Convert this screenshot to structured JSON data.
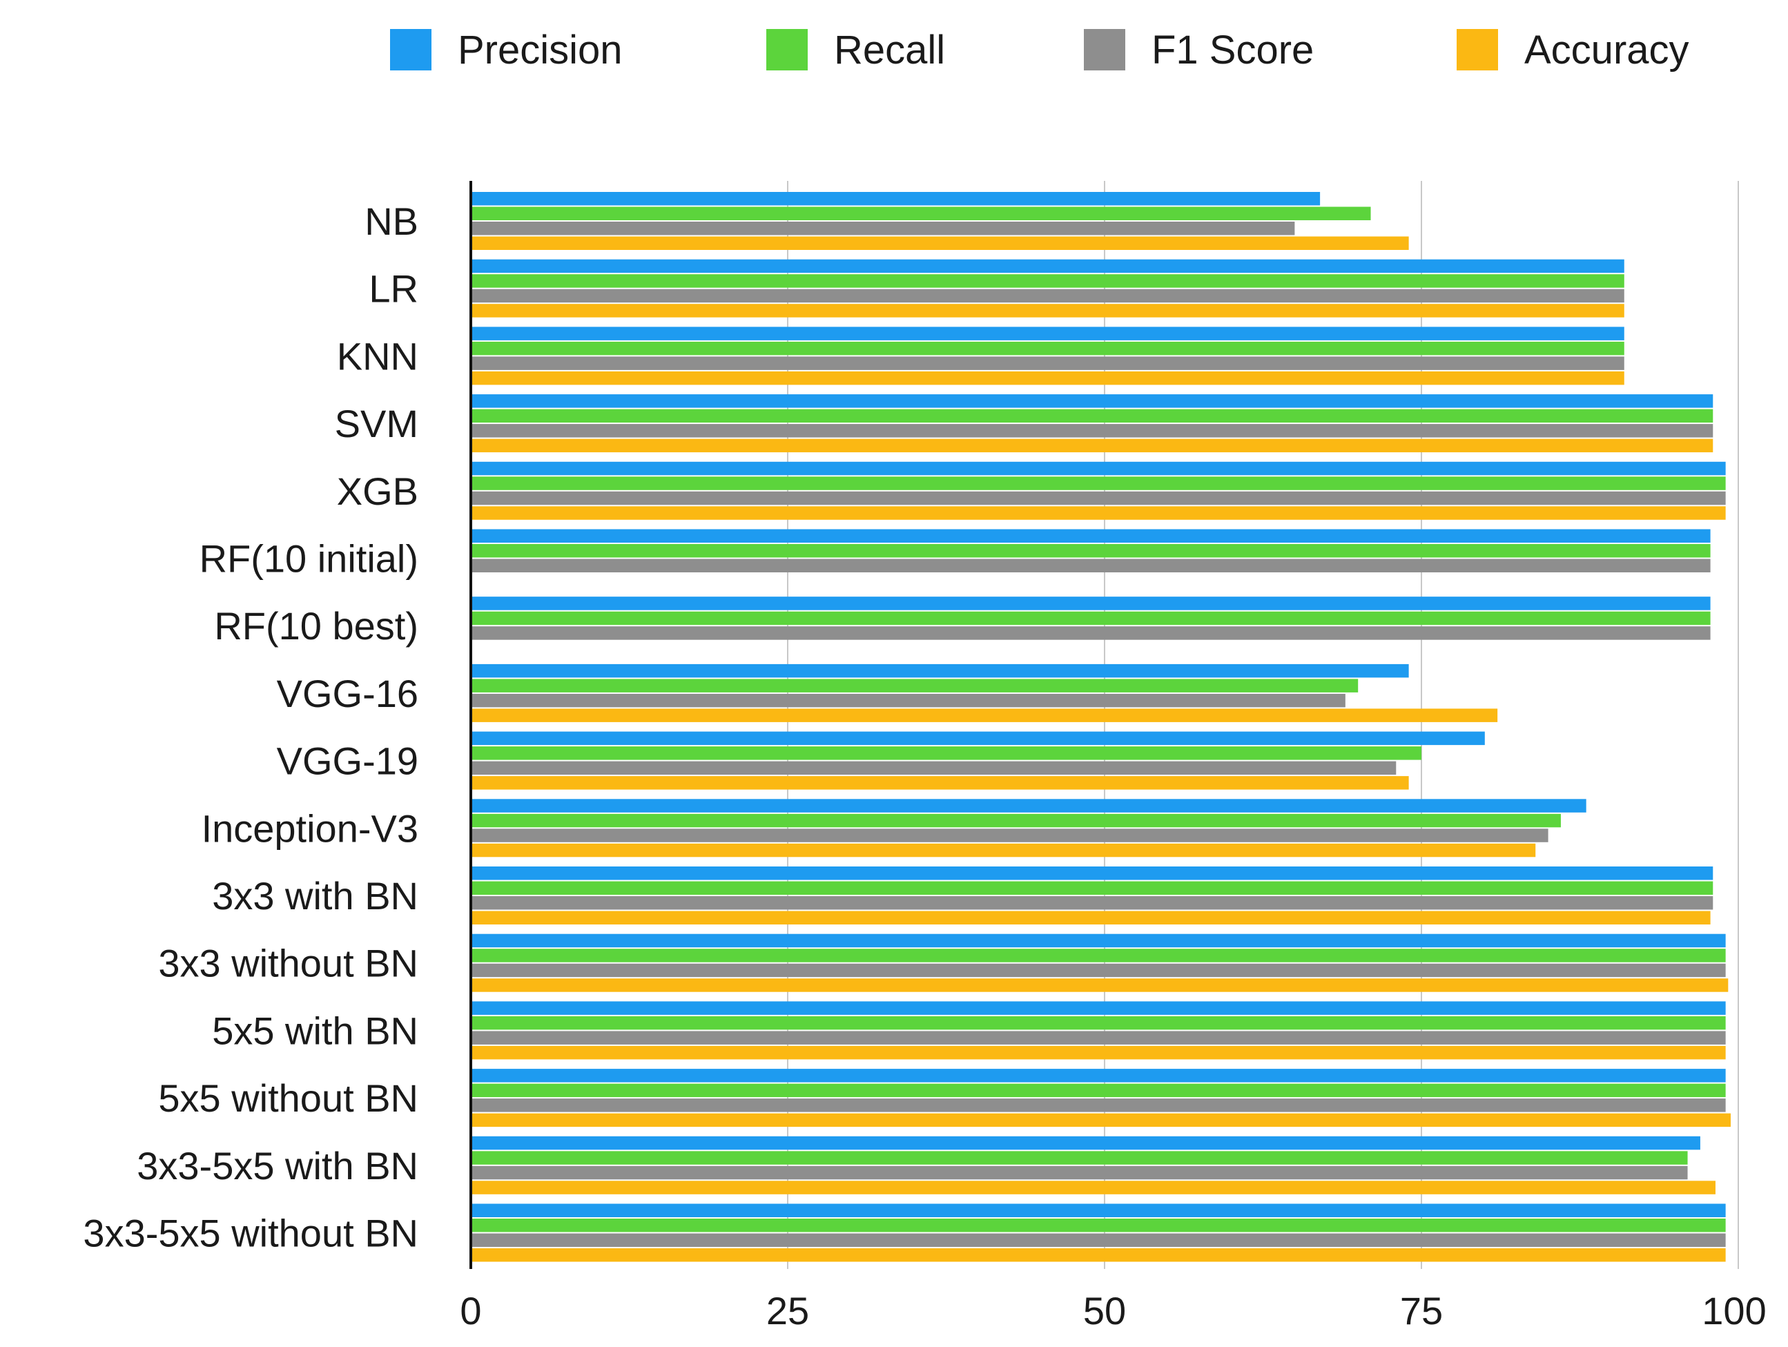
{
  "chart_data": {
    "type": "bar",
    "orientation": "horizontal",
    "title": "",
    "xlabel": "",
    "ylabel": "",
    "xlim": [
      0,
      100
    ],
    "x_ticks": [
      0,
      25,
      50,
      75,
      100
    ],
    "x_tick_labels": [
      "0",
      "25",
      "50",
      "75",
      "100"
    ],
    "grid": true,
    "legend_position": "top",
    "categories": [
      "NB",
      "LR",
      "KNN",
      "SVM",
      "XGB",
      "RF(10 initial)",
      "RF(10 best)",
      "VGG-16",
      "VGG-19",
      "Inception-V3",
      "3x3 with BN",
      "3x3 without BN",
      "5x5 with BN",
      "5x5 without BN",
      "3x3-5x5 with BN",
      "3x3-5x5 without BN"
    ],
    "series": [
      {
        "name": "Precision",
        "color": "#1E9BF0",
        "values": [
          67,
          91,
          91,
          98,
          99,
          97.8,
          97.8,
          74,
          80,
          88,
          98,
          99,
          99,
          99,
          97,
          99
        ]
      },
      {
        "name": "Recall",
        "color": "#5CD43C",
        "values": [
          71,
          91,
          91,
          98,
          99,
          97.8,
          97.8,
          70,
          75,
          86,
          98,
          99,
          99,
          99,
          96,
          99
        ]
      },
      {
        "name": "F1 Score",
        "color": "#8E8E8E",
        "values": [
          65,
          91,
          91,
          98,
          99,
          97.8,
          97.8,
          69,
          73,
          85,
          98,
          99,
          99,
          99,
          96,
          99
        ]
      },
      {
        "name": "Accuracy",
        "color": "#FBB813",
        "values": [
          74,
          91,
          91,
          98,
          99,
          null,
          null,
          81,
          74,
          84,
          97.8,
          99.2,
          99,
          99.4,
          98.2,
          99
        ]
      }
    ]
  }
}
